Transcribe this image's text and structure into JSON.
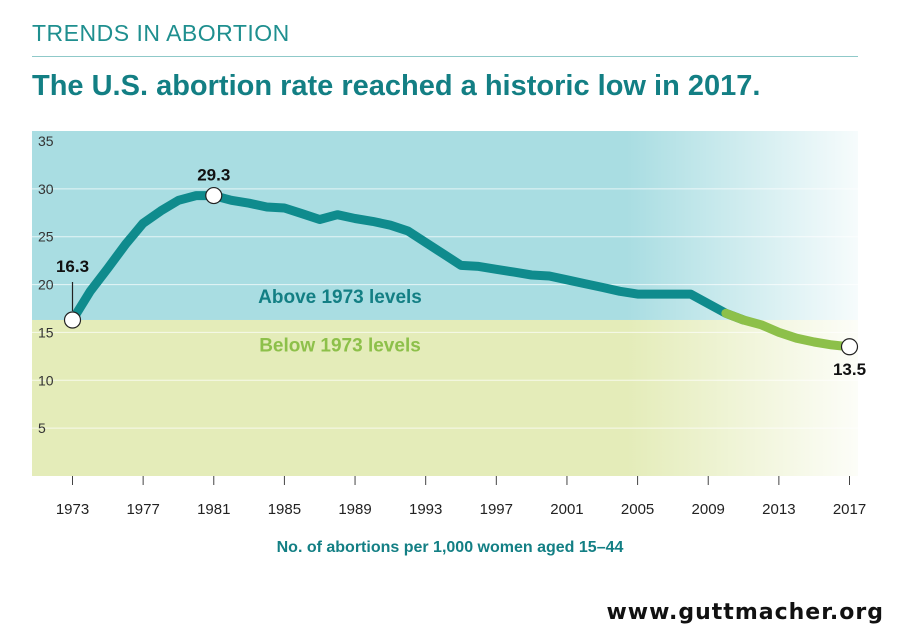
{
  "header": {
    "kicker": "TRENDS IN ABORTION",
    "headline": "The U.S. abortion rate reached a historic low in 2017."
  },
  "footer": {
    "url": "www.guttmacher.org"
  },
  "colors": {
    "above_fill": "#a9dde2",
    "below_fill": "#e4ecb9",
    "line_above": "#0f8b8d",
    "line_below": "#8dc04a",
    "text_teal": "#137f84",
    "text_green": "#8dc04a"
  },
  "chart_data": {
    "type": "line",
    "title": "",
    "xlabel": "No. of abortions per 1,000 women aged 15–44",
    "ylabel": "",
    "xlim": [
      1973,
      2017
    ],
    "ylim": [
      0,
      35
    ],
    "x_ticks": [
      "1973",
      "1977",
      "1981",
      "1985",
      "1989",
      "1993",
      "1997",
      "2001",
      "2005",
      "2009",
      "2013",
      "2017"
    ],
    "y_ticks": [
      "5",
      "10",
      "15",
      "20",
      "25",
      "30",
      "35"
    ],
    "grid": true,
    "threshold": 16.3,
    "region_labels": {
      "above": "Above 1973 levels",
      "below": "Below 1973 levels"
    },
    "series": [
      {
        "x": [
          1973,
          1974,
          1975,
          1976,
          1977,
          1978,
          1979,
          1980,
          1981,
          1982,
          1983,
          1984,
          1985,
          1986,
          1987,
          1988,
          1989,
          1990,
          1991,
          1992,
          1993,
          1994,
          1995,
          1996,
          1997,
          1998,
          1999,
          2000,
          2001,
          2002,
          2003,
          2004,
          2005,
          2006,
          2007,
          2008,
          2009,
          2010,
          2011,
          2012,
          2013,
          2014,
          2015,
          2016,
          2017
        ],
        "y": [
          16.3,
          19.3,
          21.7,
          24.2,
          26.4,
          27.7,
          28.8,
          29.3,
          29.3,
          28.8,
          28.5,
          28.1,
          28.0,
          27.4,
          26.8,
          27.3,
          26.9,
          26.6,
          26.2,
          25.6,
          24.4,
          23.2,
          22.0,
          21.9,
          21.6,
          21.3,
          21.0,
          20.9,
          20.5,
          20.1,
          19.7,
          19.3,
          19.0,
          19.0,
          19.0,
          19.0,
          18.0,
          17.0,
          16.3,
          15.8,
          15.0,
          14.4,
          14.0,
          13.7,
          13.5
        ]
      }
    ],
    "annotations": [
      {
        "x": 1973,
        "y": 16.3,
        "label": "16.3"
      },
      {
        "x": 1981,
        "y": 29.3,
        "label": "29.3"
      },
      {
        "x": 2017,
        "y": 13.5,
        "label": "13.5"
      }
    ]
  }
}
